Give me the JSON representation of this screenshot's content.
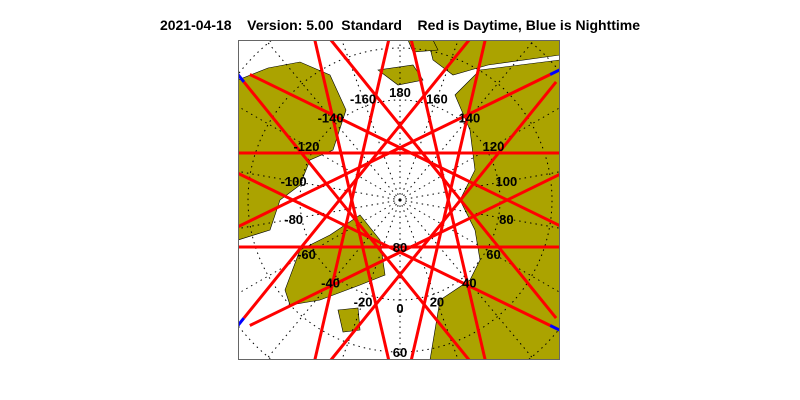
{
  "header": {
    "date": "2021-04-18",
    "version": "Version: 5.00",
    "mode": "Standard",
    "legend": "Red is Daytime, Blue is Nighttime"
  },
  "colors": {
    "land": "#aba300",
    "day": "#ff0000",
    "night": "#0000ff",
    "ocean": "#ffffff"
  },
  "map": {
    "projection": "north polar stereographic",
    "longitude_labels": [
      "180",
      "160",
      "140",
      "120",
      "100",
      "80",
      "60",
      "40",
      "20",
      "0",
      "-20",
      "-40",
      "-60",
      "-80",
      "-100",
      "-120",
      "-140",
      "-160"
    ],
    "latitude_labels": [
      "80",
      "60"
    ],
    "track_tangent_longitudes": [
      0,
      26,
      51,
      77,
      103,
      129,
      154,
      180,
      206,
      231,
      257,
      283,
      309,
      334
    ]
  }
}
